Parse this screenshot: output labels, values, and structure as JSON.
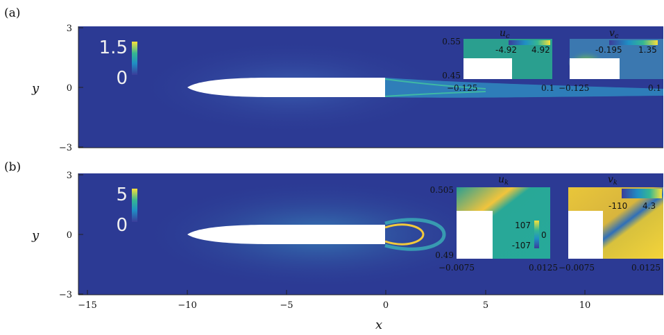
{
  "figure": {
    "x_axis_label": "x",
    "x_ticks": [
      "−15",
      "−10",
      "−5",
      "0",
      "5",
      "10"
    ],
    "panels": [
      {
        "label": "(a)",
        "y_label": "y",
        "y_ticks": [
          "3",
          "0",
          "−3"
        ],
        "colorbar": {
          "max": "1.5",
          "min": "0"
        },
        "insets": [
          {
            "title": "u",
            "sub": "c",
            "y_top": "0.55",
            "y_bottom": "0.45",
            "x_left": "−0.125",
            "x_right": "0.1",
            "cb_min": "-4.92",
            "cb_max": "4.92"
          },
          {
            "title": "v",
            "sub": "c",
            "x_left": "−0.125",
            "x_right": "0.1",
            "cb_min": "-0.195",
            "cb_max": "1.35"
          }
        ]
      },
      {
        "label": "(b)",
        "y_label": "y",
        "y_ticks": [
          "3",
          "0",
          "−3"
        ],
        "colorbar": {
          "max": "5",
          "min": "0"
        },
        "insets": [
          {
            "title": "u",
            "sub": "k",
            "y_top": "0.505",
            "y_bottom": "0.49",
            "x_left": "−0.0075",
            "x_right": "0.0125",
            "cb_max": "107",
            "cb_mid": "0",
            "cb_min": "-107"
          },
          {
            "title": "v",
            "sub": "k",
            "x_left": "−0.0075",
            "x_right": "0.0125",
            "cb_min": "-110",
            "cb_max": "4.3"
          }
        ]
      }
    ],
    "colors": {
      "field_background": "#2c3a94",
      "high": "#f5d43a",
      "mid": "#27a99a"
    }
  }
}
